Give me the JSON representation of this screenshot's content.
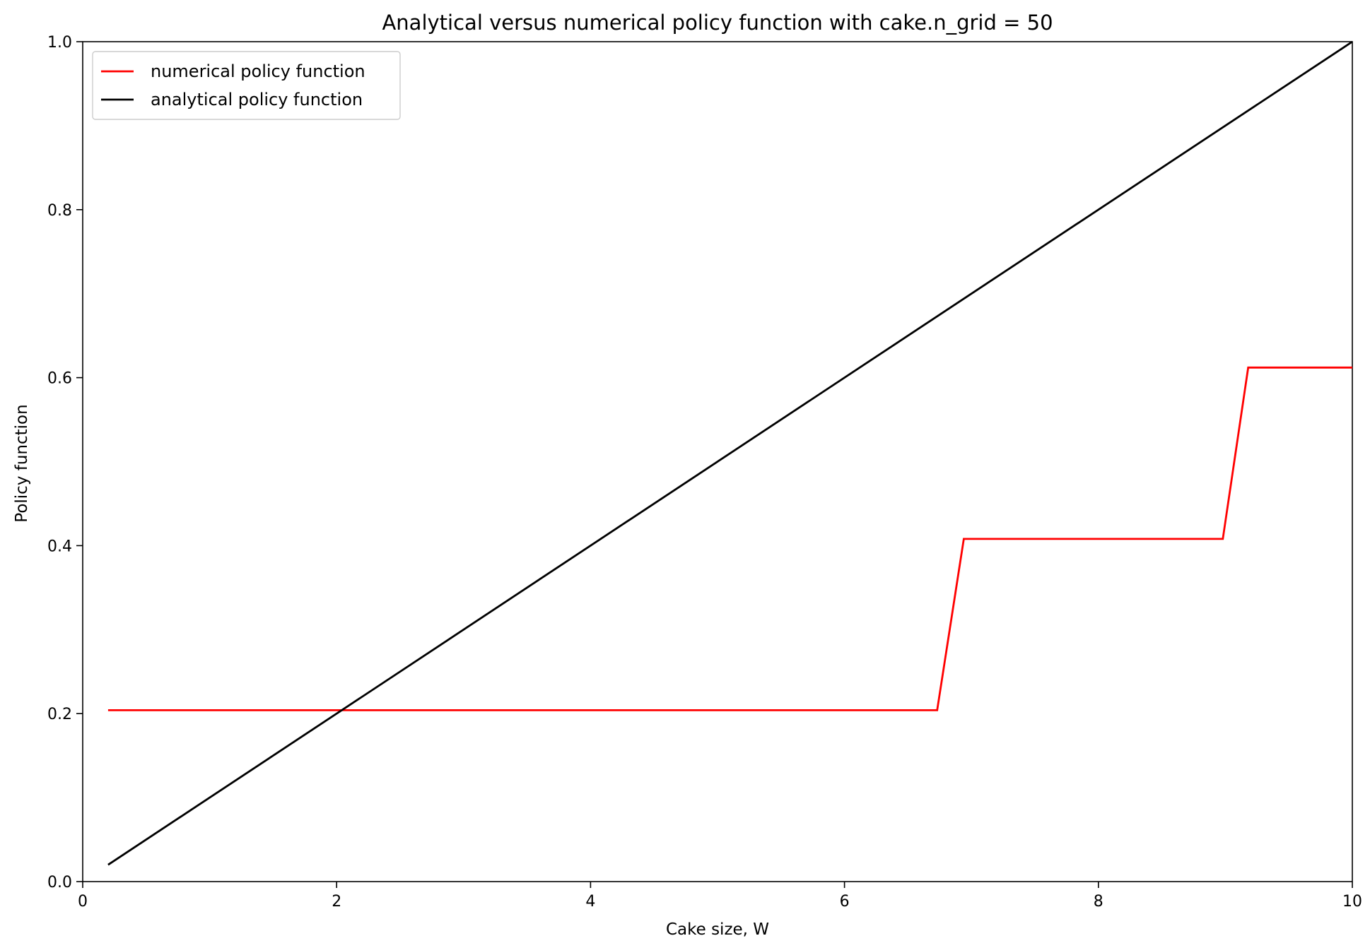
{
  "chart_data": {
    "type": "line",
    "title": "Analytical versus numerical policy function with cake.n_grid = 50",
    "xlabel": "Cake size, W",
    "ylabel": "Policy function",
    "xlim": [
      0,
      10
    ],
    "ylim": [
      0,
      1.0
    ],
    "x_ticks": [
      0,
      2,
      4,
      6,
      8,
      10
    ],
    "x_tick_labels": [
      "0",
      "2",
      "4",
      "6",
      "8",
      "10"
    ],
    "y_ticks": [
      0.0,
      0.2,
      0.4,
      0.6,
      0.8,
      1.0
    ],
    "y_tick_labels": [
      "0.0",
      "0.2",
      "0.4",
      "0.6",
      "0.8",
      "1.0"
    ],
    "grid": false,
    "legend_position": "top-left",
    "series": [
      {
        "name": "numerical policy function",
        "color": "#ff0000",
        "x": [
          0.2,
          6.73,
          6.94,
          8.98,
          9.18,
          10.0
        ],
        "y": [
          0.204,
          0.204,
          0.408,
          0.408,
          0.612,
          0.612
        ]
      },
      {
        "name": "analytical policy function",
        "color": "#000000",
        "x": [
          0.2,
          10.0
        ],
        "y": [
          0.02,
          1.0
        ]
      }
    ]
  }
}
